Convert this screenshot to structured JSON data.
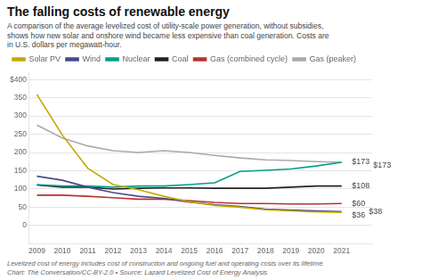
{
  "chart_data": {
    "type": "line",
    "title": "The falling costs of renewable energy",
    "subtitle": "A comparison of the average levelized cost of utility-scale power generation, without subsidies,\nshows how new solar and onshore wind became less expensive than coal generation. Costs are\nin U.S. dollars per megawatt-hour.",
    "footnote": "Levelized cost of energy includes cost of construction and ongoing fuel and operating costs over its lifetime.\nChart: The Conversation/CC-BY-2.0 • Source: Lazard Levelized Cost of Energy Analysis",
    "x": [
      2009,
      2010,
      2011,
      2012,
      2013,
      2014,
      2015,
      2016,
      2017,
      2018,
      2019,
      2020,
      2021
    ],
    "series": [
      {
        "name": "Solar PV",
        "color": "#c8a800",
        "values": [
          359,
          248,
          157,
          112,
          98,
          80,
          65,
          55,
          50,
          43,
          40,
          37,
          36
        ]
      },
      {
        "name": "Wind",
        "color": "#4a4a8a",
        "values": [
          135,
          124,
          105,
          90,
          80,
          74,
          64,
          57,
          52,
          45,
          42,
          40,
          38
        ]
      },
      {
        "name": "Nuclear",
        "color": "#00a08a",
        "values": [
          112,
          108,
          108,
          105,
          108,
          108,
          112,
          117,
          148,
          151,
          155,
          163,
          173
        ]
      },
      {
        "name": "Coal",
        "color": "#222222",
        "values": [
          111,
          105,
          105,
          100,
          102,
          103,
          103,
          102,
          102,
          102,
          105,
          108,
          108
        ]
      },
      {
        "name": "Gas (combined cycle)",
        "color": "#b83232",
        "values": [
          83,
          83,
          80,
          76,
          72,
          72,
          68,
          63,
          60,
          60,
          59,
          59,
          60
        ]
      },
      {
        "name": "Gas (peaker)",
        "color": "#aaaaaa",
        "values": [
          275,
          240,
          218,
          205,
          200,
          205,
          200,
          192,
          185,
          180,
          178,
          175,
          173
        ]
      }
    ],
    "xlim": [
      2008.7,
      2022.2
    ],
    "xticks": [
      2009,
      2010,
      2011,
      2012,
      2013,
      2014,
      2015,
      2016,
      2017,
      2018,
      2019,
      2020,
      2021
    ],
    "ylim": [
      -50,
      420
    ],
    "yticks": [
      0,
      50,
      100,
      150,
      200,
      250,
      300,
      350,
      {
        "value": 400,
        "label": "$400"
      }
    ],
    "grid": "y",
    "legend": "top",
    "annotations": [
      {
        "text": "$173",
        "x": 2021.4,
        "y": 175
      },
      {
        "text": "$173",
        "x": 2021.4,
        "y": 165
      },
      {
        "text": "$108",
        "x": 2021.4,
        "y": 108
      },
      {
        "text": "$60",
        "x": 2021.4,
        "y": 60
      },
      {
        "text": "$38",
        "x": 2021.4,
        "y": 38
      },
      {
        "text": "$36",
        "x": 2021.4,
        "y": 28
      }
    ]
  }
}
